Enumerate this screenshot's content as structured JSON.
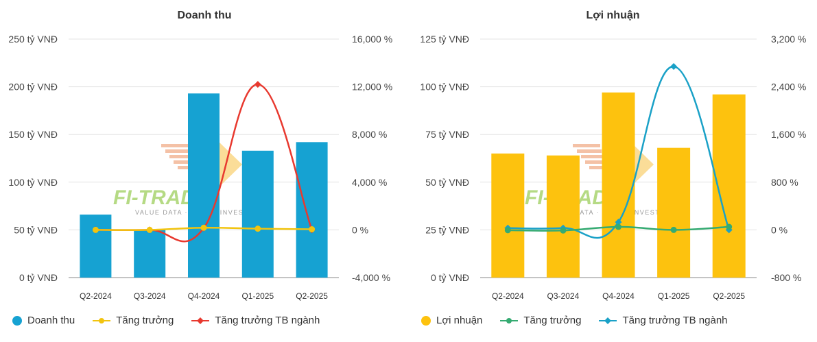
{
  "chart_data": [
    {
      "type": "bar+line",
      "title": "Doanh thu",
      "categories": [
        "Q2-2024",
        "Q3-2024",
        "Q4-2024",
        "Q1-2025",
        "Q2-2025"
      ],
      "y_left": {
        "ylim": [
          0,
          250
        ],
        "ticks": [
          0,
          50,
          100,
          150,
          200,
          250
        ],
        "tick_labels": [
          "0 tỷ VNĐ",
          "50 tỷ VNĐ",
          "100 tỷ VNĐ",
          "150 tỷ VNĐ",
          "200 tỷ VNĐ",
          "250 tỷ VNĐ"
        ]
      },
      "y_right": {
        "ylim": [
          -4000,
          16000
        ],
        "ticks": [
          -4000,
          0,
          4000,
          8000,
          12000,
          16000
        ],
        "tick_labels": [
          "-4,000 %",
          "0 %",
          "4,000 %",
          "8,000 %",
          "12,000 %",
          "16,000 %"
        ]
      },
      "series": [
        {
          "name": "Doanh thu",
          "kind": "bar",
          "axis": "left",
          "color": "#16a2d2",
          "values": [
            66,
            50,
            193,
            133,
            142
          ]
        },
        {
          "name": "Tăng trưởng",
          "kind": "line",
          "axis": "right",
          "color": "#f2c40f",
          "marker": "circle",
          "values": [
            0,
            0,
            180,
            100,
            50
          ]
        },
        {
          "name": "Tăng trưởng TB ngành",
          "kind": "line",
          "axis": "right",
          "color": "#e8392f",
          "marker": "diamond",
          "values": [
            0,
            0,
            150,
            12200,
            0
          ]
        }
      ],
      "legend": "bottom-left"
    },
    {
      "type": "bar+line",
      "title": "Lợi nhuận",
      "categories": [
        "Q2-2024",
        "Q3-2024",
        "Q4-2024",
        "Q1-2025",
        "Q2-2025"
      ],
      "y_left": {
        "ylim": [
          0,
          125
        ],
        "ticks": [
          0,
          25,
          50,
          75,
          100,
          125
        ],
        "tick_labels": [
          "0 tỷ VNĐ",
          "25 tỷ VNĐ",
          "50 tỷ VNĐ",
          "75 tỷ VNĐ",
          "100 tỷ VNĐ",
          "125 tỷ VNĐ"
        ]
      },
      "y_right": {
        "ylim": [
          -800,
          3200
        ],
        "ticks": [
          -800,
          0,
          800,
          1600,
          2400,
          3200
        ],
        "tick_labels": [
          "-800 %",
          "0 %",
          "800 %",
          "1,600 %",
          "2,400 %",
          "3,200 %"
        ]
      },
      "series": [
        {
          "name": "Lợi nhuận",
          "kind": "bar",
          "axis": "left",
          "color": "#fdc20e",
          "values": [
            65,
            64,
            97,
            68,
            96
          ]
        },
        {
          "name": "Tăng trưởng",
          "kind": "line",
          "axis": "right",
          "color": "#35ab72",
          "marker": "circle",
          "values": [
            -5,
            -10,
            50,
            0,
            50
          ]
        },
        {
          "name": "Tăng trưởng TB ngành",
          "kind": "line",
          "axis": "right",
          "color": "#1aa1c7",
          "marker": "diamond",
          "values": [
            30,
            30,
            130,
            2740,
            0
          ]
        }
      ],
      "legend": "bottom-left"
    }
  ],
  "watermark": {
    "text": "FI-TRADE",
    "subtext": "VALUE DATA · SMART INVEST"
  }
}
